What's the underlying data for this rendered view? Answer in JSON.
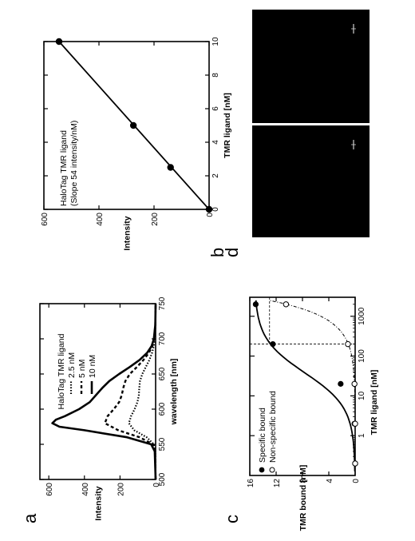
{
  "panel_letters": [
    "a",
    "b",
    "c",
    "d"
  ],
  "chart_data": [
    {
      "panel": "a",
      "type": "line",
      "xlabel": "wavelength [nm]",
      "ylabel": "Intensity",
      "xlim": [
        500,
        750
      ],
      "ylim": [
        0,
        650
      ],
      "xticks": [
        500,
        550,
        600,
        650,
        700,
        750
      ],
      "yticks": [
        0,
        200,
        400,
        600
      ],
      "legend_title": "HaloTag TMR ligand",
      "legend_position": "top-right",
      "series": [
        {
          "name": "2.5 nM",
          "dash": "dotted",
          "x": [
            500,
            540,
            550,
            560,
            570,
            580,
            590,
            600,
            610,
            620,
            630,
            640,
            650,
            660,
            670,
            680,
            690,
            700,
            720,
            750
          ],
          "y": [
            0,
            2,
            10,
            50,
            120,
            150,
            138,
            118,
            102,
            94,
            92,
            88,
            75,
            55,
            35,
            20,
            10,
            5,
            1,
            0
          ]
        },
        {
          "name": "5 nM",
          "dash": "dashed",
          "x": [
            500,
            540,
            550,
            560,
            570,
            580,
            590,
            600,
            610,
            620,
            630,
            640,
            650,
            660,
            670,
            680,
            690,
            700,
            720,
            750
          ],
          "y": [
            0,
            3,
            15,
            90,
            210,
            285,
            270,
            235,
            205,
            190,
            182,
            170,
            145,
            105,
            68,
            38,
            18,
            8,
            2,
            0
          ]
        },
        {
          "name": "10 nM",
          "dash": "solid",
          "x": [
            500,
            540,
            550,
            560,
            570,
            575,
            580,
            585,
            590,
            600,
            610,
            620,
            630,
            640,
            650,
            660,
            670,
            680,
            690,
            700,
            720,
            750
          ],
          "y": [
            0,
            5,
            25,
            160,
            400,
            540,
            580,
            560,
            510,
            430,
            370,
            335,
            300,
            260,
            205,
            145,
            90,
            48,
            22,
            10,
            2,
            0
          ]
        }
      ]
    },
    {
      "panel": "b",
      "type": "scatter",
      "xlabel": "TMR ligand [nM]",
      "ylabel": "Intensity",
      "xlim": [
        0,
        10
      ],
      "ylim": [
        0,
        600
      ],
      "xticks": [
        0,
        2,
        4,
        6,
        8,
        10
      ],
      "yticks": [
        0,
        200,
        400,
        600
      ],
      "annotation": [
        "HaloTag TMR ligand",
        "(Slope 54 intensity/nM)"
      ],
      "x": [
        0,
        2.5,
        5,
        10
      ],
      "y": [
        0,
        140,
        275,
        545
      ],
      "fit": {
        "x": [
          0,
          10
        ],
        "y": [
          0,
          545
        ]
      }
    },
    {
      "panel": "c",
      "type": "scatter",
      "xlabel": "TMR ligand [nM]",
      "ylabel": "TMR bound [nM]",
      "xscale": "log",
      "xlim": [
        0.1,
        3000
      ],
      "ylim": [
        0,
        16
      ],
      "xticks": [
        1,
        10,
        100,
        1000
      ],
      "yticks": [
        0,
        4,
        8,
        12,
        16
      ],
      "legend_position": "bottom-left",
      "series": [
        {
          "name": "Specific bound",
          "marker": "filled",
          "x": [
            0.2,
            2,
            20,
            200,
            2000
          ],
          "y": [
            0,
            0.1,
            2.2,
            12.5,
            15.1
          ]
        },
        {
          "name": "Non-specific bound",
          "marker": "open",
          "x": [
            0.2,
            2,
            20,
            200,
            2000
          ],
          "y": [
            0,
            0,
            0.1,
            1.1,
            10.5
          ]
        }
      ],
      "reference_lines": {
        "x": 200,
        "y": 13
      }
    },
    {
      "panel": "d",
      "type": "image",
      "images": 2
    }
  ]
}
